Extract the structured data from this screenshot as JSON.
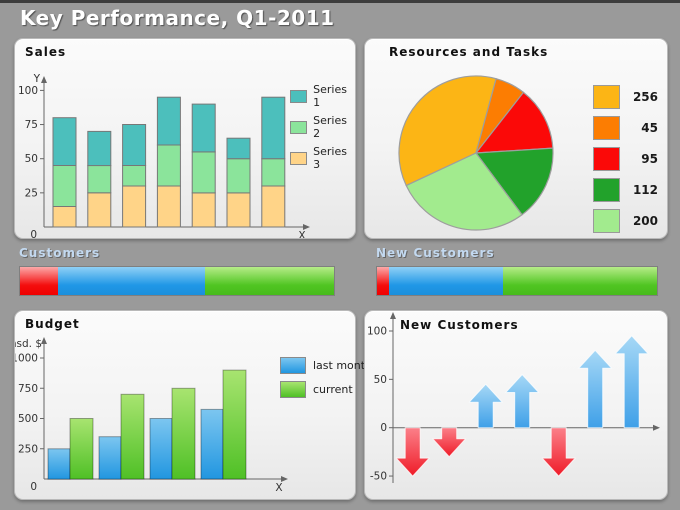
{
  "header": {
    "title": "Key Performance, Q1-2011"
  },
  "theme": {
    "background": "#9A9A9A",
    "panel_background_top": "#FBFBFB",
    "panel_background_bottom": "#E7E7E7",
    "header_text": "#FFFFFF",
    "progress_label_text": "#C3D9F0",
    "axis_color": "#666666"
  },
  "chart_data": [
    {
      "id": "sales",
      "type": "bar",
      "stacked": true,
      "title": "Sales",
      "y_axis_label": "Y",
      "x_axis_label": "X",
      "origin_label": "0",
      "y_ticks": [
        100,
        75,
        50,
        25
      ],
      "ylim": [
        0,
        105
      ],
      "grid": false,
      "legend_position": "right",
      "series": [
        {
          "name": "Series 1",
          "color": "#4CBFBC",
          "values": [
            35,
            25,
            30,
            35,
            35,
            15,
            45
          ]
        },
        {
          "name": "Series 2",
          "color": "#8BE49B",
          "values": [
            30,
            20,
            15,
            30,
            30,
            25,
            20
          ]
        },
        {
          "name": "Series 3",
          "color": "#FFD488",
          "values": [
            15,
            25,
            30,
            30,
            25,
            25,
            30
          ]
        }
      ],
      "stack_totals": [
        80,
        70,
        75,
        95,
        90,
        65,
        95
      ]
    },
    {
      "id": "resources-and-tasks",
      "type": "pie",
      "title": "Resources and Tasks",
      "start_angle_deg": 245,
      "direction": "clockwise",
      "legend_position": "right",
      "slices": [
        {
          "label": "256",
          "value": 256,
          "color": "#FCB515"
        },
        {
          "label": "45",
          "value": 45,
          "color": "#FC7D02"
        },
        {
          "label": "95",
          "value": 95,
          "color": "#FB0908"
        },
        {
          "label": "112",
          "value": 112,
          "color": "#22A22B"
        },
        {
          "label": "200",
          "value": 200,
          "color": "#A2EB8E"
        }
      ]
    },
    {
      "id": "customers-progress",
      "type": "progress",
      "title": "Customers",
      "segments": [
        {
          "name": "red",
          "percent": 12,
          "colors": [
            "#FCA9A9",
            "#F40E0E",
            "#EF0000"
          ]
        },
        {
          "name": "blue",
          "percent": 47,
          "colors": [
            "#8FD0F6",
            "#2097E6",
            "#1B8FDC"
          ]
        },
        {
          "name": "green",
          "percent": 41,
          "colors": [
            "#B6EC88",
            "#50C522",
            "#47BB1B"
          ]
        }
      ]
    },
    {
      "id": "new-customers-progress",
      "type": "progress",
      "title": "New Customers",
      "segments": [
        {
          "name": "red",
          "percent": 4.3,
          "colors": [
            "#FCA9A9",
            "#F40E0E",
            "#EF0000"
          ]
        },
        {
          "name": "blue",
          "percent": 40.7,
          "colors": [
            "#8FD0F6",
            "#2097E6",
            "#1B8FDC"
          ]
        },
        {
          "name": "green",
          "percent": 55,
          "colors": [
            "#B6EC88",
            "#50C522",
            "#47BB1B"
          ]
        }
      ]
    },
    {
      "id": "budget",
      "type": "bar",
      "grouped": true,
      "title": "Budget",
      "y_axis_label": "thsd. $",
      "x_axis_label": "X",
      "origin_label": "0",
      "y_ticks": [
        1000,
        750,
        500,
        250
      ],
      "ylim": [
        0,
        1100
      ],
      "grid": false,
      "legend_position": "right",
      "series": [
        {
          "name": "last month",
          "colors": [
            "#7CC6F0",
            "#2196E0"
          ],
          "values": [
            250,
            350,
            500,
            575
          ]
        },
        {
          "name": "current",
          "colors": [
            "#A8E470",
            "#4FC026"
          ],
          "values": [
            500,
            700,
            750,
            900
          ]
        }
      ]
    },
    {
      "id": "new-customers",
      "type": "arrow",
      "title": "New Customers",
      "y_ticks": [
        100,
        50,
        0,
        -50
      ],
      "ylim": [
        -65,
        110
      ],
      "values": [
        -50,
        -30,
        45,
        55,
        -50,
        80,
        95
      ],
      "up_colors": [
        "#A6D8F6",
        "#3FA0E8"
      ],
      "down_colors": [
        "#FB8089",
        "#EF1B28"
      ]
    }
  ]
}
